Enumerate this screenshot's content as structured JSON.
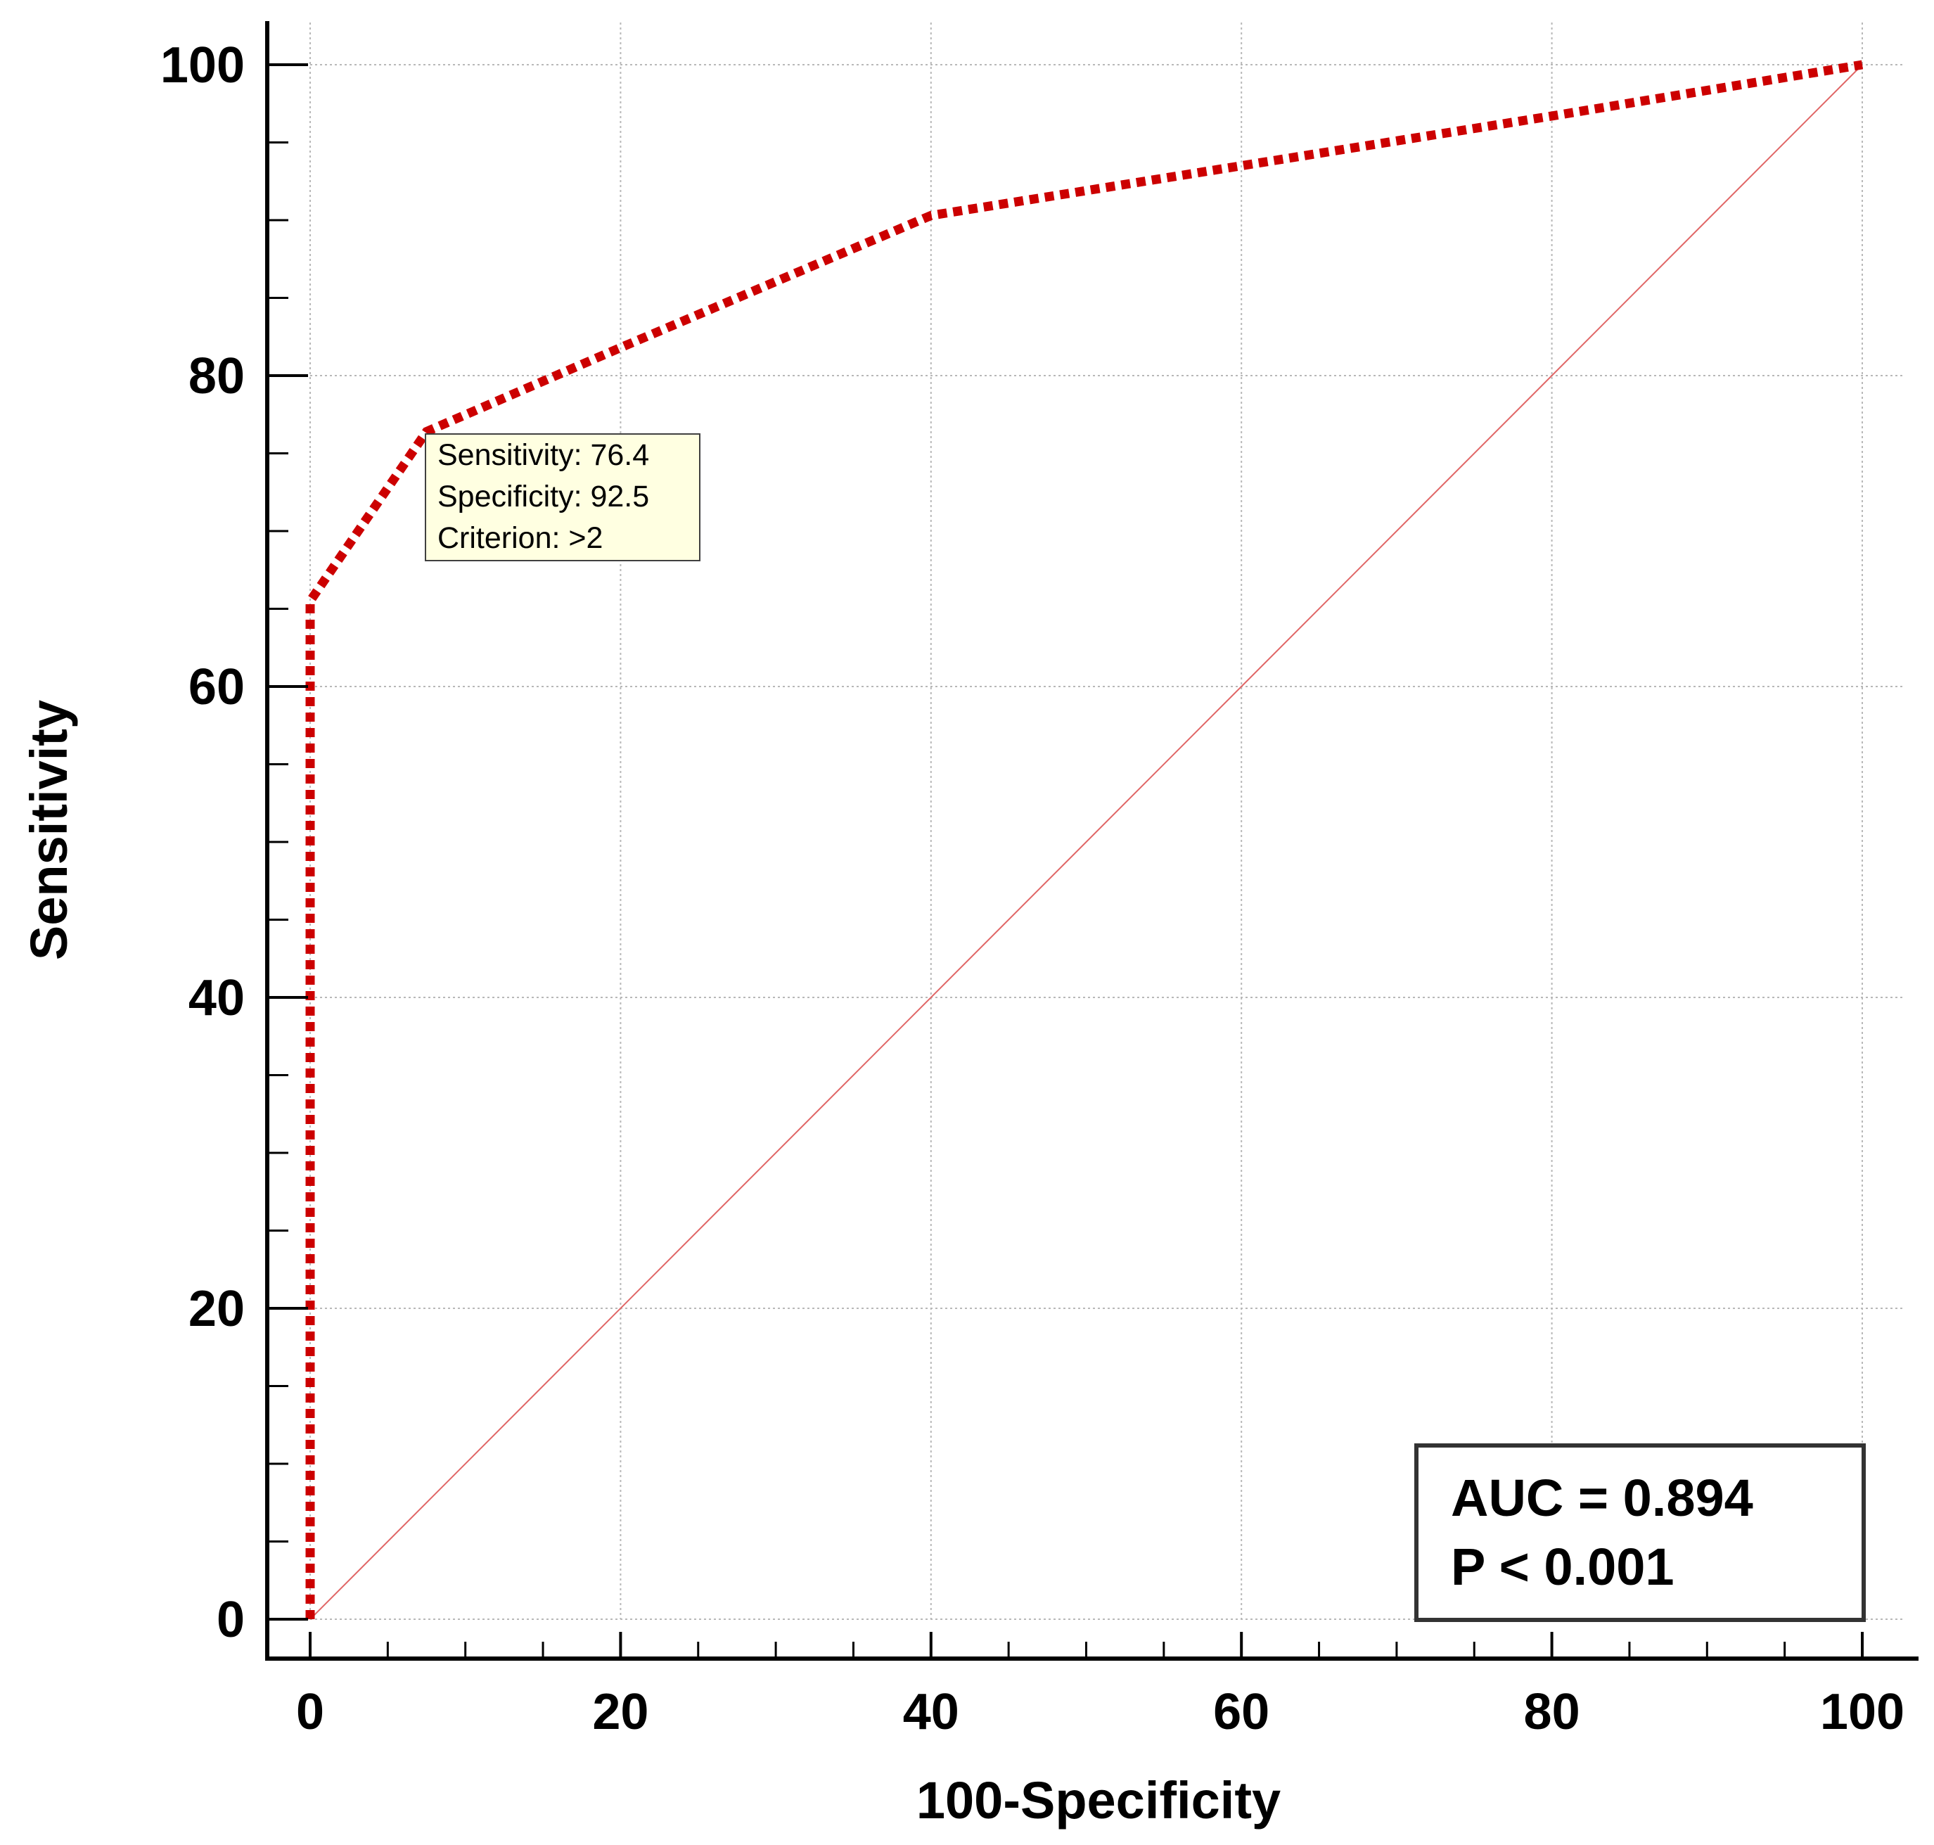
{
  "chart_data": {
    "type": "line",
    "title": "",
    "xlabel": "100-Specificity",
    "ylabel": "Sensitivity",
    "xlim": [
      0,
      100
    ],
    "ylim": [
      0,
      100
    ],
    "x_ticks": [
      0,
      20,
      40,
      60,
      80,
      100
    ],
    "y_ticks": [
      0,
      20,
      40,
      60,
      80,
      100
    ],
    "x_tick_labels": [
      "0",
      "20",
      "40",
      "60",
      "80",
      "100"
    ],
    "y_tick_labels": [
      "0",
      "20",
      "40",
      "60",
      "80",
      "100"
    ],
    "grid": true,
    "series": [
      {
        "role": "roc-curve",
        "color": "#cc0000",
        "style": "dotted-thick",
        "x": [
          0,
          0,
          7.5,
          20,
          40,
          60,
          80,
          100
        ],
        "y": [
          0,
          65.5,
          76.4,
          81.8,
          90.3,
          93.5,
          96.7,
          100
        ]
      },
      {
        "role": "reference-diagonal",
        "color": "#e06666",
        "style": "thin",
        "x": [
          0,
          100
        ],
        "y": [
          0,
          100
        ]
      }
    ],
    "annotation": {
      "x": 7.5,
      "y": 76.4,
      "lines": [
        "Sensitivity: 76.4",
        "Specificity: 92.5",
        "Criterion: >2"
      ],
      "background": "#ffffe1"
    },
    "stats_box": {
      "lines": [
        "AUC = 0.894",
        "P < 0.001"
      ],
      "placement": "bottom-right"
    }
  }
}
